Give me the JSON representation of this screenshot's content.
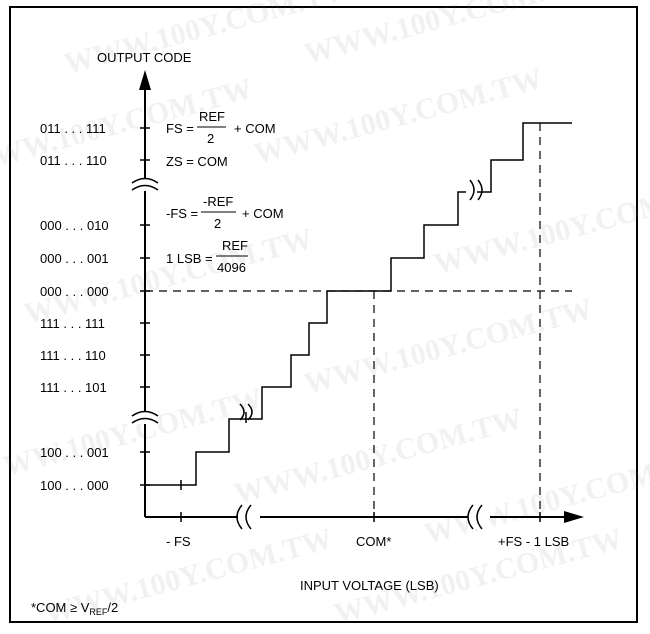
{
  "y_axis_title": "OUTPUT CODE",
  "x_axis_title": "INPUT VOLTAGE (LSB)",
  "y_codes": [
    "011 . . . 111",
    "011 . . . 110",
    "000 . . . 010",
    "000 . . . 001",
    "000 . . . 000",
    "111 . . . 111",
    "111 . . . 110",
    "111 . . . 101",
    "100 . . . 001",
    "100 . . . 000"
  ],
  "x_labels": {
    "neg_fs": "- FS",
    "com": "COM*",
    "pos_fs": "+FS - 1 LSB"
  },
  "equations": {
    "fs_lhs": "FS =",
    "fs_num": "REF",
    "fs_den": "2",
    "fs_tail": "+ COM",
    "zs": "ZS = COM",
    "negfs_lhs": "-FS =",
    "negfs_num": "-REF",
    "negfs_den": "2",
    "negfs_tail": "+ COM",
    "lsb_lhs": "1 LSB =",
    "lsb_num": "REF",
    "lsb_den": "4096"
  },
  "footnote": {
    "prefix": "*COM ≥ V",
    "sub": "REF",
    "suffix": "/2"
  },
  "watermark": "WWW.100Y.COM.TW"
}
